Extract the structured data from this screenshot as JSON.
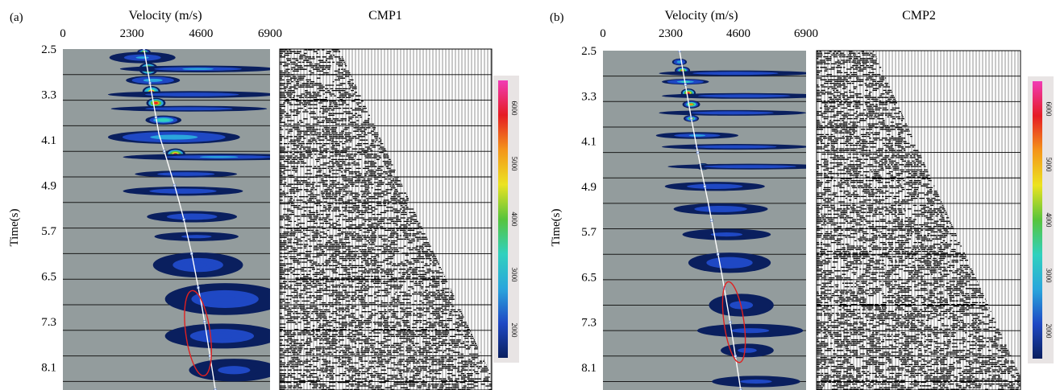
{
  "chart_data": [
    {
      "type": "heatmap",
      "panel_label": "(a)",
      "semblance_title": "Velocity (m/s)",
      "ylabel": "Time(s)",
      "x_ticks": [
        "0",
        "2300",
        "4600",
        "6900"
      ],
      "x_tick_values": [
        0,
        2300,
        4600,
        6900
      ],
      "xlim": [
        0,
        6900
      ],
      "y_ticks": [
        "2.5",
        "3.3",
        "4.1",
        "4.9",
        "5.7",
        "6.5",
        "7.3",
        "8.1"
      ],
      "y_tick_values": [
        2.5,
        3.3,
        4.1,
        4.9,
        5.7,
        6.5,
        7.3,
        8.1
      ],
      "ylim": [
        2.5,
        8.5
      ],
      "gather_title": "CMP1",
      "picked_velocity": {
        "t": [
          2.5,
          2.8,
          3.1,
          3.4,
          3.7,
          4.0,
          4.3,
          4.6,
          4.9,
          5.2,
          5.5,
          5.8,
          6.1,
          6.4,
          6.7,
          7.0,
          7.3,
          7.6,
          7.9,
          8.2,
          8.5
        ],
        "v": [
          2700,
          2800,
          2900,
          3000,
          3100,
          3200,
          3380,
          3550,
          3720,
          3880,
          4030,
          4160,
          4290,
          4400,
          4510,
          4620,
          4720,
          4810,
          4900,
          4990,
          5080
        ]
      },
      "energy": [
        {
          "t": 2.55,
          "v": 2700,
          "dt": 0.05,
          "dv": 220,
          "peak": 4800
        },
        {
          "t": 2.65,
          "v": 2650,
          "dt": 0.1,
          "dv": 1100,
          "peak": 2700
        },
        {
          "t": 2.85,
          "v": 2850,
          "dt": 0.11,
          "dv": 320,
          "peak": 6200
        },
        {
          "t": 2.85,
          "v": 4500,
          "dt": 0.06,
          "dv": 2600,
          "peak": 2600
        },
        {
          "t": 3.05,
          "v": 3000,
          "dt": 0.08,
          "dv": 900,
          "peak": 3000
        },
        {
          "t": 3.25,
          "v": 2950,
          "dt": 0.1,
          "dv": 300,
          "peak": 5800
        },
        {
          "t": 3.3,
          "v": 4300,
          "dt": 0.06,
          "dv": 2800,
          "peak": 2300
        },
        {
          "t": 3.45,
          "v": 3100,
          "dt": 0.09,
          "dv": 320,
          "peak": 6100
        },
        {
          "t": 3.55,
          "v": 4200,
          "dt": 0.05,
          "dv": 2600,
          "peak": 2200
        },
        {
          "t": 3.75,
          "v": 3350,
          "dt": 0.08,
          "dv": 600,
          "peak": 3600
        },
        {
          "t": 4.05,
          "v": 3700,
          "dt": 0.12,
          "dv": 2200,
          "peak": 2800
        },
        {
          "t": 4.35,
          "v": 3750,
          "dt": 0.1,
          "dv": 330,
          "peak": 6000
        },
        {
          "t": 4.4,
          "v": 5200,
          "dt": 0.06,
          "dv": 3200,
          "peak": 2500
        },
        {
          "t": 4.7,
          "v": 4100,
          "dt": 0.06,
          "dv": 1700,
          "peak": 2200
        },
        {
          "t": 5.0,
          "v": 4000,
          "dt": 0.08,
          "dv": 2000,
          "peak": 2300
        },
        {
          "t": 5.45,
          "v": 4300,
          "dt": 0.1,
          "dv": 1500,
          "peak": 2200
        },
        {
          "t": 5.8,
          "v": 4450,
          "dt": 0.08,
          "dv": 1400,
          "peak": 2100
        },
        {
          "t": 6.3,
          "v": 4500,
          "dt": 0.22,
          "dv": 1500,
          "peak": 2200
        },
        {
          "t": 6.9,
          "v": 5400,
          "dt": 0.28,
          "dv": 2000,
          "peak": 2300
        },
        {
          "t": 7.55,
          "v": 5300,
          "dt": 0.22,
          "dv": 1900,
          "peak": 2200
        },
        {
          "t": 8.15,
          "v": 5700,
          "dt": 0.2,
          "dv": 1500,
          "peak": 2100
        }
      ],
      "ellipse": {
        "t": 7.5,
        "v": 4500,
        "dt": 1.05,
        "dv": 900
      }
    },
    {
      "type": "heatmap",
      "panel_label": "(b)",
      "semblance_title": "Velocity (m/s)",
      "ylabel": "Time(s)",
      "x_ticks": [
        "0",
        "2300",
        "4600",
        "6900"
      ],
      "x_tick_values": [
        0,
        2300,
        4600,
        6900
      ],
      "xlim": [
        0,
        6900
      ],
      "y_ticks": [
        "2.5",
        "3.3",
        "4.1",
        "4.9",
        "5.7",
        "6.5",
        "7.3",
        "8.1"
      ],
      "y_tick_values": [
        2.5,
        3.3,
        4.1,
        4.9,
        5.7,
        6.5,
        7.3,
        8.1
      ],
      "ylim": [
        2.5,
        8.5
      ],
      "gather_title": "CMP2",
      "picked_velocity": {
        "t": [
          2.5,
          2.8,
          3.1,
          3.4,
          3.7,
          4.0,
          4.3,
          4.6,
          4.9,
          5.2,
          5.5,
          5.8,
          6.1,
          6.4,
          6.7,
          7.0,
          7.3,
          7.6,
          7.9,
          8.2,
          8.5
        ],
        "v": [
          2600,
          2700,
          2800,
          2900,
          3000,
          3110,
          3220,
          3340,
          3460,
          3580,
          3690,
          3800,
          3910,
          4020,
          4120,
          4220,
          4320,
          4410,
          4500,
          4590,
          4680
        ]
      },
      "energy": [
        {
          "t": 2.7,
          "v": 2600,
          "dt": 0.06,
          "dv": 250,
          "peak": 3000
        },
        {
          "t": 2.85,
          "v": 2700,
          "dt": 0.07,
          "dv": 260,
          "peak": 5000
        },
        {
          "t": 2.9,
          "v": 4500,
          "dt": 0.05,
          "dv": 2600,
          "peak": 2300
        },
        {
          "t": 3.05,
          "v": 2800,
          "dt": 0.05,
          "dv": 800,
          "peak": 3200
        },
        {
          "t": 3.25,
          "v": 2900,
          "dt": 0.08,
          "dv": 250,
          "peak": 5900
        },
        {
          "t": 3.3,
          "v": 4800,
          "dt": 0.05,
          "dv": 2800,
          "peak": 2200
        },
        {
          "t": 3.45,
          "v": 3000,
          "dt": 0.07,
          "dv": 300,
          "peak": 5200
        },
        {
          "t": 3.6,
          "v": 4400,
          "dt": 0.05,
          "dv": 2500,
          "peak": 2200
        },
        {
          "t": 3.7,
          "v": 3000,
          "dt": 0.06,
          "dv": 260,
          "peak": 4500
        },
        {
          "t": 4.0,
          "v": 3200,
          "dt": 0.06,
          "dv": 1400,
          "peak": 2600
        },
        {
          "t": 4.2,
          "v": 4500,
          "dt": 0.05,
          "dv": 2500,
          "peak": 2200
        },
        {
          "t": 4.55,
          "v": 3400,
          "dt": 0.06,
          "dv": 220,
          "peak": 5400
        },
        {
          "t": 4.55,
          "v": 5000,
          "dt": 0.05,
          "dv": 2800,
          "peak": 2300
        },
        {
          "t": 4.9,
          "v": 3800,
          "dt": 0.08,
          "dv": 1700,
          "peak": 2200
        },
        {
          "t": 5.3,
          "v": 4000,
          "dt": 0.1,
          "dv": 1600,
          "peak": 2200
        },
        {
          "t": 5.75,
          "v": 4200,
          "dt": 0.1,
          "dv": 1500,
          "peak": 2100
        },
        {
          "t": 6.25,
          "v": 4300,
          "dt": 0.18,
          "dv": 1400,
          "peak": 2200
        },
        {
          "t": 7.0,
          "v": 4700,
          "dt": 0.2,
          "dv": 1100,
          "peak": 2100
        },
        {
          "t": 7.45,
          "v": 5000,
          "dt": 0.12,
          "dv": 1800,
          "peak": 2100
        },
        {
          "t": 7.8,
          "v": 4900,
          "dt": 0.12,
          "dv": 900,
          "peak": 2100
        },
        {
          "t": 8.35,
          "v": 5200,
          "dt": 0.1,
          "dv": 1500,
          "peak": 2000
        }
      ],
      "ellipse": {
        "t": 7.3,
        "v": 4450,
        "dt": 1.0,
        "dv": 750
      }
    }
  ],
  "colorbar": {
    "ticks": [
      "2000",
      "3000",
      "4000",
      "5000",
      "6000"
    ],
    "tick_values": [
      2000,
      3000,
      4000,
      5000,
      6000
    ],
    "range": [
      1500,
      6500
    ],
    "colors": [
      "#0a1f5e",
      "#1f48c4",
      "#2aa6dc",
      "#31d1be",
      "#57c43c",
      "#ece321",
      "#f4951b",
      "#e51c24",
      "#f13cb5"
    ]
  },
  "colors": {
    "semblance_background": "#939c9d",
    "picked_curve": "#ffffff",
    "ellipse": "#e02020",
    "gather_ink": "#000000"
  }
}
